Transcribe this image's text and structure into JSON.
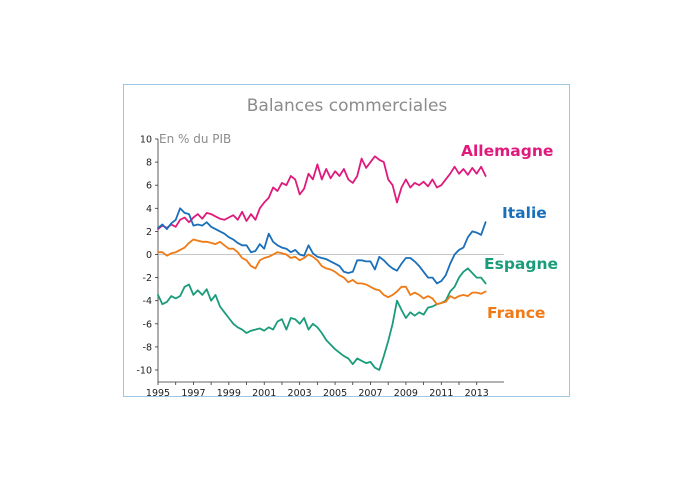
{
  "chart_data": {
    "type": "line",
    "title": "Balances commerciales",
    "ylabel": "En % du PIB",
    "xlabel": "",
    "xlim": [
      1995.0,
      2013.75
    ],
    "ylim": [
      -10,
      10
    ],
    "yticks": [
      "10",
      "8",
      "6",
      "4",
      "2",
      "0",
      "-2",
      "-4",
      "-6",
      "-8",
      "-10"
    ],
    "xticks": [
      "1995",
      "1997",
      "1999",
      "2001",
      "2003",
      "2005",
      "2007",
      "2009",
      "2011",
      "2013"
    ],
    "grid": false,
    "legend": "inline-labels",
    "zero_line": true,
    "series": [
      {
        "name": "Allemagne",
        "color": "#e0197d",
        "x": [
          1995.0,
          1995.25,
          1995.5,
          1995.75,
          1996.0,
          1996.25,
          1996.5,
          1996.75,
          1997.0,
          1997.25,
          1997.5,
          1997.75,
          1998.0,
          1998.25,
          1998.5,
          1998.75,
          1999.0,
          1999.25,
          1999.5,
          1999.75,
          2000.0,
          2000.25,
          2000.5,
          2000.75,
          2001.0,
          2001.25,
          2001.5,
          2001.75,
          2002.0,
          2002.25,
          2002.5,
          2002.75,
          2003.0,
          2003.25,
          2003.5,
          2003.75,
          2004.0,
          2004.25,
          2004.5,
          2004.75,
          2005.0,
          2005.25,
          2005.5,
          2005.75,
          2006.0,
          2006.25,
          2006.5,
          2006.75,
          2007.0,
          2007.25,
          2007.5,
          2007.75,
          2008.0,
          2008.25,
          2008.5,
          2008.75,
          2009.0,
          2009.25,
          2009.5,
          2009.75,
          2010.0,
          2010.25,
          2010.5,
          2010.75,
          2011.0,
          2011.25,
          2011.5,
          2011.75,
          2012.0,
          2012.25,
          2012.5,
          2012.75,
          2013.0,
          2013.25,
          2013.5
        ],
        "values": [
          2.2,
          2.5,
          2.3,
          2.6,
          2.4,
          3.0,
          3.2,
          2.8,
          3.2,
          3.5,
          3.1,
          3.6,
          3.5,
          3.3,
          3.1,
          3.0,
          3.2,
          3.4,
          3.0,
          3.7,
          2.9,
          3.5,
          3.0,
          4.0,
          4.5,
          4.9,
          5.8,
          5.5,
          6.2,
          6.0,
          6.8,
          6.5,
          5.2,
          5.7,
          7.0,
          6.5,
          7.8,
          6.5,
          7.4,
          6.6,
          7.2,
          6.8,
          7.4,
          6.5,
          6.2,
          6.8,
          8.3,
          7.5,
          8.0,
          8.5,
          8.2,
          8.0,
          6.5,
          6.0,
          4.5,
          5.8,
          6.5,
          5.8,
          6.2,
          6.0,
          6.3,
          5.9,
          6.5,
          5.8,
          6.0,
          6.5,
          7.0,
          7.6,
          7.0,
          7.4,
          6.9,
          7.5,
          7.0,
          7.6,
          6.8
        ]
      },
      {
        "name": "Italie",
        "color": "#1a6fba",
        "x": [
          1995.0,
          1995.25,
          1995.5,
          1995.75,
          1996.0,
          1996.25,
          1996.5,
          1996.75,
          1997.0,
          1997.25,
          1997.5,
          1997.75,
          1998.0,
          1998.25,
          1998.5,
          1998.75,
          1999.0,
          1999.25,
          1999.5,
          1999.75,
          2000.0,
          2000.25,
          2000.5,
          2000.75,
          2001.0,
          2001.25,
          2001.5,
          2001.75,
          2002.0,
          2002.25,
          2002.5,
          2002.75,
          2003.0,
          2003.25,
          2003.5,
          2003.75,
          2004.0,
          2004.25,
          2004.5,
          2004.75,
          2005.0,
          2005.25,
          2005.5,
          2005.75,
          2006.0,
          2006.25,
          2006.5,
          2006.75,
          2007.0,
          2007.25,
          2007.5,
          2007.75,
          2008.0,
          2008.25,
          2008.5,
          2008.75,
          2009.0,
          2009.25,
          2009.5,
          2009.75,
          2010.0,
          2010.25,
          2010.5,
          2010.75,
          2011.0,
          2011.25,
          2011.5,
          2011.75,
          2012.0,
          2012.25,
          2012.5,
          2012.75,
          2013.0,
          2013.25,
          2013.5
        ],
        "values": [
          2.3,
          2.6,
          2.2,
          2.7,
          3.0,
          4.0,
          3.6,
          3.5,
          2.5,
          2.6,
          2.5,
          2.8,
          2.4,
          2.2,
          2.0,
          1.8,
          1.5,
          1.3,
          1.0,
          0.8,
          0.8,
          0.2,
          0.3,
          0.9,
          0.5,
          1.8,
          1.1,
          0.8,
          0.6,
          0.5,
          0.2,
          0.4,
          0.0,
          -0.1,
          0.8,
          0.1,
          -0.2,
          -0.3,
          -0.4,
          -0.6,
          -0.8,
          -1.0,
          -1.5,
          -1.6,
          -1.5,
          -0.5,
          -0.5,
          -0.6,
          -0.6,
          -1.3,
          -0.2,
          -0.5,
          -0.9,
          -1.2,
          -1.4,
          -0.8,
          -0.3,
          -0.3,
          -0.6,
          -1.0,
          -1.5,
          -2.0,
          -2.0,
          -2.5,
          -2.3,
          -1.8,
          -0.8,
          0.0,
          0.4,
          0.6,
          1.5,
          2.0,
          1.9,
          1.7,
          2.8
        ]
      },
      {
        "name": "Espagne",
        "color": "#1a9c7b",
        "x": [
          1995.0,
          1995.25,
          1995.5,
          1995.75,
          1996.0,
          1996.25,
          1996.5,
          1996.75,
          1997.0,
          1997.25,
          1997.5,
          1997.75,
          1998.0,
          1998.25,
          1998.5,
          1998.75,
          1999.0,
          1999.25,
          1999.5,
          1999.75,
          2000.0,
          2000.25,
          2000.5,
          2000.75,
          2001.0,
          2001.25,
          2001.5,
          2001.75,
          2002.0,
          2002.25,
          2002.5,
          2002.75,
          2003.0,
          2003.25,
          2003.5,
          2003.75,
          2004.0,
          2004.25,
          2004.5,
          2004.75,
          2005.0,
          2005.25,
          2005.5,
          2005.75,
          2006.0,
          2006.25,
          2006.5,
          2006.75,
          2007.0,
          2007.25,
          2007.5,
          2007.75,
          2008.0,
          2008.25,
          2008.5,
          2008.75,
          2009.0,
          2009.25,
          2009.5,
          2009.75,
          2010.0,
          2010.25,
          2010.5,
          2010.75,
          2011.0,
          2011.25,
          2011.5,
          2011.75,
          2012.0,
          2012.25,
          2012.5,
          2012.75,
          2013.0,
          2013.25,
          2013.5
        ],
        "values": [
          -3.5,
          -4.3,
          -4.1,
          -3.6,
          -3.8,
          -3.6,
          -2.8,
          -2.6,
          -3.5,
          -3.1,
          -3.5,
          -3.0,
          -4.0,
          -3.5,
          -4.5,
          -5.0,
          -5.5,
          -6.0,
          -6.3,
          -6.5,
          -6.8,
          -6.6,
          -6.5,
          -6.4,
          -6.6,
          -6.3,
          -6.5,
          -5.8,
          -5.6,
          -6.5,
          -5.5,
          -5.6,
          -6.0,
          -5.5,
          -6.5,
          -6.0,
          -6.3,
          -6.8,
          -7.4,
          -7.8,
          -8.2,
          -8.5,
          -8.8,
          -9.0,
          -9.5,
          -9.0,
          -9.2,
          -9.4,
          -9.3,
          -9.8,
          -10.0,
          -8.8,
          -7.5,
          -6.0,
          -4.0,
          -4.8,
          -5.5,
          -5.0,
          -5.3,
          -5.0,
          -5.2,
          -4.6,
          -4.5,
          -4.3,
          -4.2,
          -4.0,
          -3.2,
          -2.8,
          -2.0,
          -1.5,
          -1.2,
          -1.6,
          -2.0,
          -2.0,
          -2.5
        ]
      },
      {
        "name": "France",
        "color": "#f07a16",
        "x": [
          1995.0,
          1995.25,
          1995.5,
          1995.75,
          1996.0,
          1996.25,
          1996.5,
          1996.75,
          1997.0,
          1997.25,
          1997.5,
          1997.75,
          1998.0,
          1998.25,
          1998.5,
          1998.75,
          1999.0,
          1999.25,
          1999.5,
          1999.75,
          2000.0,
          2000.25,
          2000.5,
          2000.75,
          2001.0,
          2001.25,
          2001.5,
          2001.75,
          2002.0,
          2002.25,
          2002.5,
          2002.75,
          2003.0,
          2003.25,
          2003.5,
          2003.75,
          2004.0,
          2004.25,
          2004.5,
          2004.75,
          2005.0,
          2005.25,
          2005.5,
          2005.75,
          2006.0,
          2006.25,
          2006.5,
          2006.75,
          2007.0,
          2007.25,
          2007.5,
          2007.75,
          2008.0,
          2008.25,
          2008.5,
          2008.75,
          2009.0,
          2009.25,
          2009.5,
          2009.75,
          2010.0,
          2010.25,
          2010.5,
          2010.75,
          2011.0,
          2011.25,
          2011.5,
          2011.75,
          2012.0,
          2012.25,
          2012.5,
          2012.75,
          2013.0,
          2013.25,
          2013.5
        ],
        "values": [
          0.2,
          0.2,
          -0.1,
          0.1,
          0.2,
          0.4,
          0.6,
          1.0,
          1.3,
          1.2,
          1.1,
          1.1,
          1.0,
          0.9,
          1.1,
          0.8,
          0.5,
          0.5,
          0.2,
          -0.3,
          -0.5,
          -1.0,
          -1.2,
          -0.5,
          -0.3,
          -0.2,
          0.0,
          0.2,
          0.1,
          0.0,
          -0.3,
          -0.2,
          -0.5,
          -0.3,
          0.0,
          -0.2,
          -0.5,
          -1.0,
          -1.2,
          -1.3,
          -1.5,
          -1.8,
          -2.0,
          -2.4,
          -2.2,
          -2.5,
          -2.5,
          -2.6,
          -2.8,
          -3.0,
          -3.1,
          -3.5,
          -3.7,
          -3.5,
          -3.2,
          -2.8,
          -2.8,
          -3.5,
          -3.3,
          -3.5,
          -3.8,
          -3.6,
          -3.8,
          -4.3,
          -4.2,
          -4.1,
          -3.6,
          -3.8,
          -3.6,
          -3.5,
          -3.6,
          -3.3,
          -3.3,
          -3.4,
          -3.2
        ]
      }
    ]
  }
}
